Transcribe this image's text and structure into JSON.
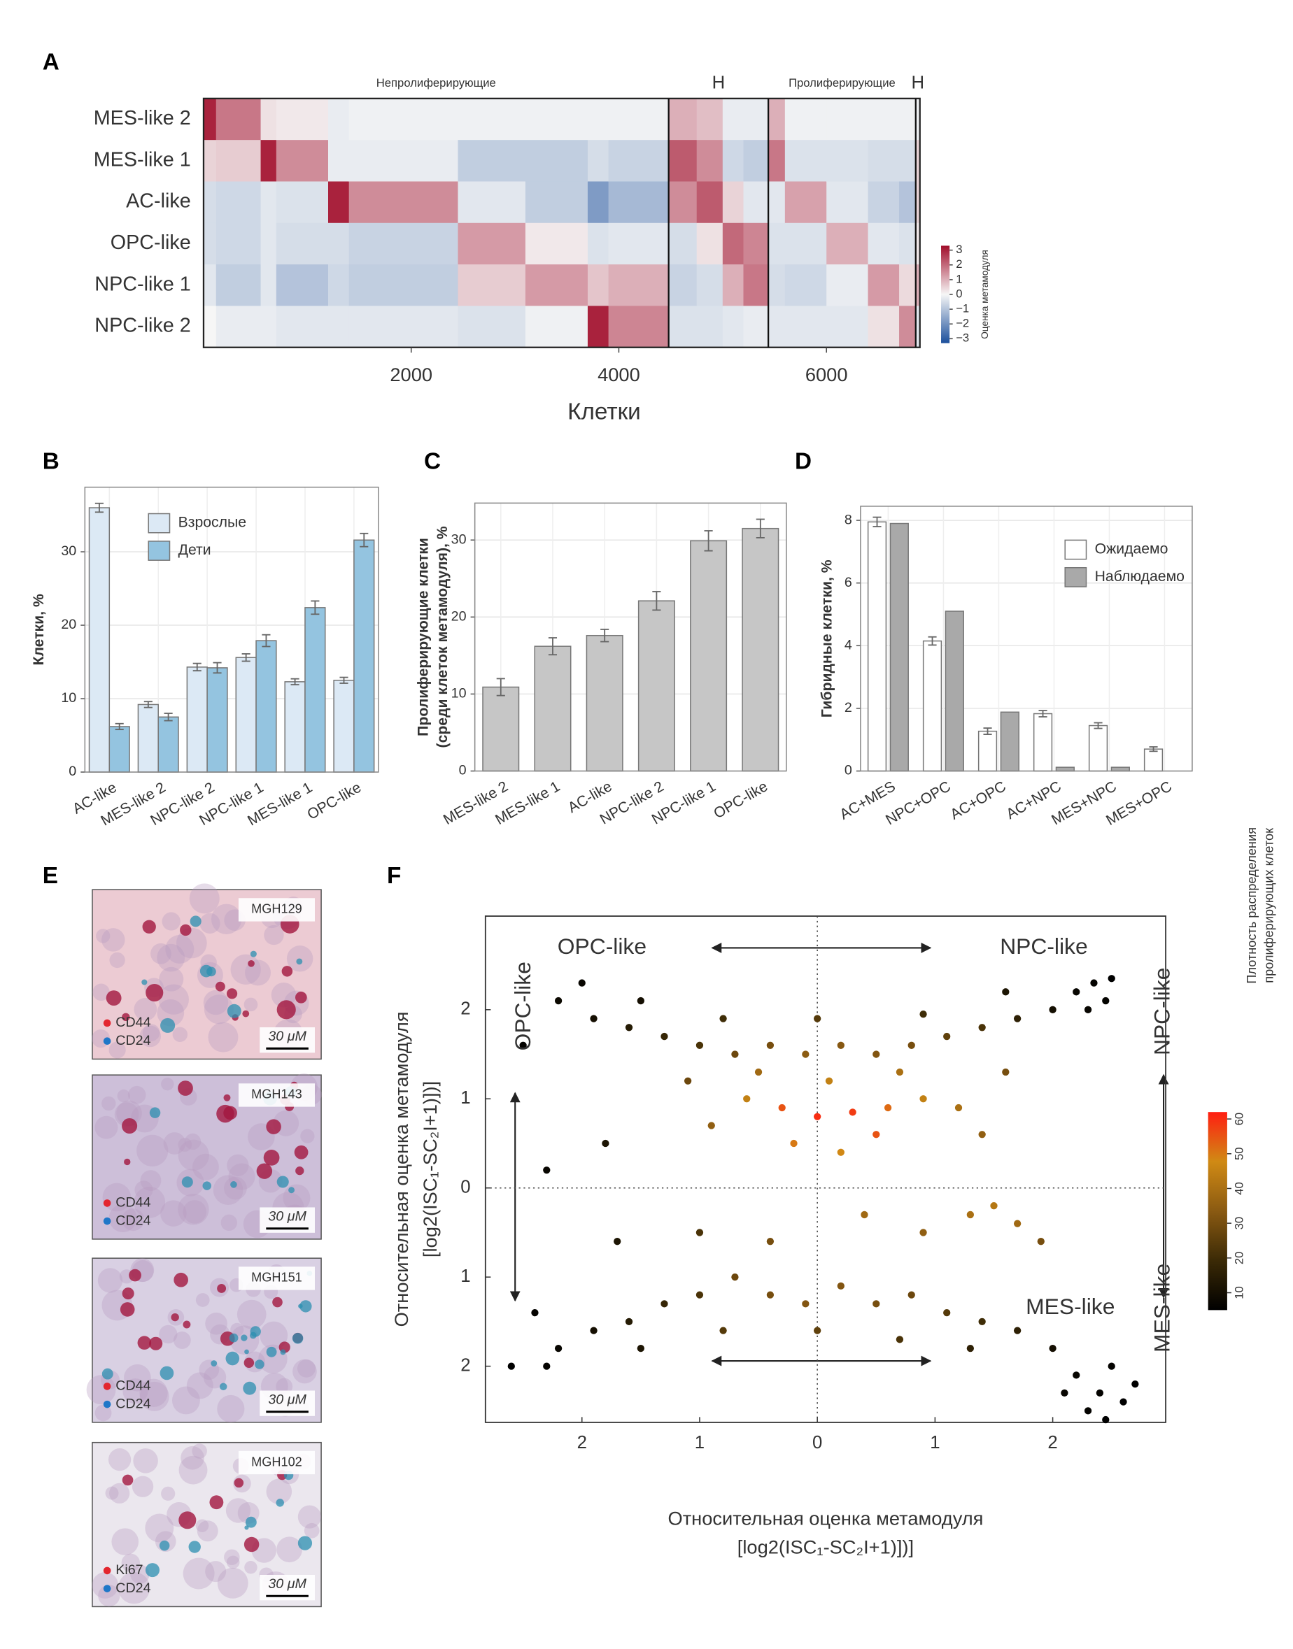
{
  "figure": {
    "panel_letters": [
      "A",
      "B",
      "C",
      "D",
      "E",
      "F"
    ],
    "micrographs": [
      {
        "id": "MGH129",
        "markers": [
          {
            "name": "CD44",
            "color": "#e3262f"
          },
          {
            "name": "CD24",
            "color": "#1f77c8"
          }
        ],
        "scale": "30 μM"
      },
      {
        "id": "MGH143",
        "markers": [
          {
            "name": "CD44",
            "color": "#e3262f"
          },
          {
            "name": "CD24",
            "color": "#1f77c8"
          }
        ],
        "scale": "30 μM"
      },
      {
        "id": "MGH151",
        "markers": [
          {
            "name": "CD44",
            "color": "#e3262f"
          },
          {
            "name": "CD24",
            "color": "#1f77c8"
          }
        ],
        "scale": "30 μM"
      },
      {
        "id": "MGH102",
        "markers": [
          {
            "name": "Ki67",
            "color": "#e3262f"
          },
          {
            "name": "CD24",
            "color": "#1f77c8"
          }
        ],
        "scale": "30 μM"
      }
    ]
  },
  "chart_data": [
    {
      "type": "heatmap",
      "xlabel": "Клетки",
      "rows": [
        "MES-like 2",
        "MES-like 1",
        "AC-like",
        "OPC-like",
        "NPC-like 1",
        "NPC-like 2"
      ],
      "groups": [
        {
          "name": "Непролиферирующие",
          "end": 4480
        },
        {
          "name": "H",
          "end": 5440
        },
        {
          "name": "Пролиферирующие",
          "end": 6860
        },
        {
          "name": "H",
          "end": 6900
        }
      ],
      "segments": [
        {
          "start": 0,
          "end": 120,
          "values": [
            3,
            0.5,
            -0.5,
            -0.5,
            -0.3,
            0
          ]
        },
        {
          "start": 120,
          "end": 550,
          "values": [
            1.8,
            0.6,
            -0.6,
            -0.6,
            -0.8,
            -0.2
          ]
        },
        {
          "start": 550,
          "end": 700,
          "values": [
            0.3,
            3,
            -0.3,
            -0.3,
            -0.3,
            -0.2
          ]
        },
        {
          "start": 700,
          "end": 1200,
          "values": [
            0.2,
            1.5,
            -0.4,
            -0.5,
            -1,
            -0.3
          ]
        },
        {
          "start": 1200,
          "end": 1400,
          "values": [
            -0.2,
            -0.2,
            3,
            -0.5,
            -0.6,
            -0.3
          ]
        },
        {
          "start": 1400,
          "end": 2450,
          "values": [
            -0.1,
            -0.2,
            1.5,
            -0.7,
            -0.8,
            -0.3
          ]
        },
        {
          "start": 2450,
          "end": 3100,
          "values": [
            -0.1,
            -0.8,
            -0.3,
            1.3,
            0.6,
            -0.4
          ]
        },
        {
          "start": 3100,
          "end": 3700,
          "values": [
            -0.1,
            -0.8,
            -0.8,
            0.2,
            1.3,
            -0.1
          ]
        },
        {
          "start": 3700,
          "end": 3900,
          "values": [
            -0.1,
            -0.5,
            -1.8,
            -0.4,
            0.7,
            3
          ]
        },
        {
          "start": 3900,
          "end": 4480,
          "values": [
            -0.1,
            -0.7,
            -1.2,
            -0.3,
            1,
            1.6
          ]
        },
        {
          "start": 4480,
          "end": 4750,
          "values": [
            1,
            2.2,
            1.5,
            -0.5,
            -0.7,
            -0.4
          ]
        },
        {
          "start": 4750,
          "end": 5000,
          "values": [
            0.8,
            1.5,
            2.2,
            0.3,
            -0.5,
            -0.4
          ]
        },
        {
          "start": 5000,
          "end": 5200,
          "values": [
            -0.2,
            -0.6,
            0.5,
            2,
            1,
            -0.3
          ]
        },
        {
          "start": 5200,
          "end": 5440,
          "values": [
            -0.2,
            -0.8,
            -0.3,
            1.6,
            1.8,
            -0.2
          ]
        },
        {
          "start": 5440,
          "end": 5600,
          "values": [
            1,
            1.8,
            -0.3,
            -0.4,
            -0.5,
            -0.3
          ]
        },
        {
          "start": 5600,
          "end": 6000,
          "values": [
            -0.1,
            -0.4,
            1.2,
            -0.4,
            -0.6,
            -0.3
          ]
        },
        {
          "start": 6000,
          "end": 6400,
          "values": [
            -0.1,
            -0.4,
            -0.3,
            1,
            -0.2,
            -0.3
          ]
        },
        {
          "start": 6400,
          "end": 6700,
          "values": [
            -0.1,
            -0.5,
            -0.7,
            -0.3,
            1.3,
            0.3
          ]
        },
        {
          "start": 6700,
          "end": 6860,
          "values": [
            -0.1,
            -0.5,
            -1,
            -0.4,
            0.4,
            1.5
          ]
        },
        {
          "start": 6860,
          "end": 6900,
          "values": [
            -0.1,
            0.5,
            0.5,
            0.2,
            1,
            -0.3
          ]
        }
      ],
      "xlim": [
        0,
        6900
      ],
      "xticks": [
        2000,
        4000,
        6000
      ],
      "clim": [
        -3.3,
        3.3
      ],
      "cticks": [
        {
          "value": -3,
          "label": "−3"
        },
        {
          "value": -2,
          "label": "−2"
        },
        {
          "value": -1,
          "label": "−1"
        },
        0,
        1,
        2,
        3
      ],
      "colors": [
        "#1b4f9c",
        "#f6f6f6",
        "#a10d2a"
      ],
      "colorbar_label": "Оценка метамодуля"
    },
    {
      "type": "bar",
      "ylabel": [
        "Клетки, %"
      ],
      "categories": [
        "AC-like",
        "MES-like 2",
        "NPC-like 2",
        "NPC-like 1",
        "MES-like 1",
        "OPC-like"
      ],
      "series": [
        {
          "name": "Взрослые",
          "color": "#dce9f5",
          "values": [
            36,
            9.2,
            14.3,
            15.6,
            12.3,
            12.5
          ],
          "errors": [
            0.6,
            0.4,
            0.5,
            0.5,
            0.4,
            0.4
          ]
        },
        {
          "name": "Дети",
          "color": "#94c4e0",
          "values": [
            6.2,
            7.5,
            14.2,
            17.9,
            22.4,
            31.6
          ],
          "errors": [
            0.4,
            0.5,
            0.7,
            0.8,
            0.9,
            0.9
          ]
        }
      ],
      "ylim": [
        0,
        38.8
      ],
      "yticks": [
        0,
        10,
        20,
        30
      ],
      "grid": true,
      "legend": "upper left"
    },
    {
      "type": "bar",
      "ylabel": [
        "Пролиферирующие клетки",
        "(среди клеток метамодуля), %"
      ],
      "categories": [
        "MES-like 2",
        "MES-like 1",
        "AC-like",
        "NPC-like 2",
        "NPC-like 1",
        "OPC-like"
      ],
      "series": [
        {
          "color": "#c6c6c6",
          "values": [
            10.9,
            16.2,
            17.6,
            22.1,
            29.9,
            31.5
          ],
          "errors": [
            1.1,
            1.1,
            0.8,
            1.2,
            1.3,
            1.2
          ]
        }
      ],
      "ylim": [
        0,
        34.8
      ],
      "yticks": [
        0,
        10,
        20,
        30
      ],
      "grid": true
    },
    {
      "type": "bar",
      "ylabel": [
        "Гибридные клетки, %"
      ],
      "categories": [
        "AC+MES",
        "NPC+OPC",
        "AC+OPC",
        "AC+NPC",
        "MES+NPC",
        "MES+OPC"
      ],
      "series": [
        {
          "name": "Ожидаемо",
          "color": "#ffffff",
          "values": [
            7.95,
            4.15,
            1.27,
            1.83,
            1.45,
            0.7
          ],
          "errors": [
            0.15,
            0.13,
            0.1,
            0.1,
            0.09,
            0.07
          ]
        },
        {
          "name": "Наблюдаемо",
          "color": "#a9a9a9",
          "values": [
            7.9,
            5.1,
            1.88,
            0.12,
            0.12,
            0
          ]
        }
      ],
      "ylim": [
        0,
        8.45
      ],
      "yticks": [
        0,
        2,
        4,
        6,
        8
      ],
      "grid": true,
      "legend": "upper right"
    },
    {
      "type": "scatter",
      "xlabel": [
        "Относительная оценка метамодуля",
        "[log2(ISC₁-SC₂I+1)])]"
      ],
      "ylabel": [
        "Относительная оценка метамодуля",
        "[log2(ISC₁-SC₂I+1)])]"
      ],
      "annotations": [
        "OPC-like",
        "NPC-like",
        "MES-like",
        "OPC-like",
        "NPC-like",
        "MES-like"
      ],
      "xlim": [
        -2.82,
        2.96
      ],
      "ylim": [
        -2.63,
        3.05
      ],
      "xticks": [
        {
          "value": -2,
          "label": "2"
        },
        {
          "value": -1,
          "label": "1"
        },
        0,
        1,
        2
      ],
      "yticks": [
        {
          "value": -2,
          "label": "2"
        },
        {
          "value": -1,
          "label": "1"
        },
        0,
        1,
        2
      ],
      "x": [
        -2.2,
        -1.9,
        -1.6,
        -1.3,
        -1.0,
        -0.7,
        -0.4,
        -0.1,
        0.2,
        0.5,
        0.8,
        1.1,
        1.4,
        1.7,
        2.0,
        2.2,
        2.35,
        2.45,
        2.3,
        2.5,
        -2.0,
        -1.5,
        -0.8,
        0.0,
        0.9,
        1.6,
        -0.6,
        -0.3,
        0.0,
        0.3,
        0.6,
        0.9,
        -0.2,
        0.2,
        0.5,
        1.2,
        -0.9,
        1.4,
        0.1,
        -0.5,
        0.7,
        -1.1,
        1.6,
        1.5,
        1.7,
        1.3,
        0.9,
        0.4,
        -0.4,
        -1.0,
        1.9,
        -2.2,
        -1.9,
        -1.6,
        -1.3,
        -1.0,
        -0.7,
        -0.4,
        -0.1,
        0.2,
        0.5,
        0.8,
        1.1,
        1.4,
        1.7,
        2.0,
        -2.3,
        -1.5,
        -0.8,
        0.0,
        0.7,
        1.3,
        2.2,
        2.4,
        2.6,
        2.5,
        2.3,
        2.7,
        2.1,
        2.45,
        -2.5,
        -2.4,
        -2.6,
        -1.8,
        -1.7,
        -2.3
      ],
      "y": [
        2.1,
        1.9,
        1.8,
        1.7,
        1.6,
        1.5,
        1.6,
        1.5,
        1.6,
        1.5,
        1.6,
        1.7,
        1.8,
        1.9,
        2.0,
        2.2,
        2.3,
        2.1,
        2.0,
        2.35,
        2.3,
        2.1,
        1.9,
        1.9,
        1.95,
        2.2,
        1.0,
        0.9,
        0.8,
        0.85,
        0.9,
        1.0,
        0.5,
        0.4,
        0.6,
        0.9,
        0.7,
        0.6,
        1.2,
        1.3,
        1.3,
        1.2,
        1.3,
        -0.2,
        -0.4,
        -0.3,
        -0.5,
        -0.3,
        -0.6,
        -0.5,
        -0.6,
        -1.8,
        -1.6,
        -1.5,
        -1.3,
        -1.2,
        -1.0,
        -1.2,
        -1.3,
        -1.1,
        -1.3,
        -1.2,
        -1.4,
        -1.5,
        -1.6,
        -1.8,
        -2.0,
        -1.8,
        -1.6,
        -1.6,
        -1.7,
        -1.8,
        -2.1,
        -2.3,
        -2.4,
        -2.0,
        -2.5,
        -2.2,
        -2.3,
        -2.6,
        1.6,
        -1.4,
        -2.0,
        0.5,
        -0.6,
        0.2
      ],
      "density": [
        8,
        10,
        14,
        18,
        22,
        28,
        30,
        34,
        33,
        32,
        30,
        26,
        22,
        16,
        10,
        7,
        6,
        6,
        7,
        5,
        7,
        10,
        20,
        24,
        20,
        12,
        45,
        55,
        60,
        58,
        52,
        45,
        50,
        48,
        55,
        40,
        35,
        35,
        45,
        38,
        40,
        28,
        30,
        42,
        38,
        40,
        35,
        38,
        30,
        22,
        30,
        7,
        10,
        14,
        18,
        22,
        28,
        30,
        32,
        32,
        30,
        28,
        24,
        20,
        16,
        10,
        6,
        12,
        24,
        26,
        22,
        16,
        7,
        6,
        5,
        6,
        6,
        5,
        7,
        5,
        6,
        6,
        5,
        12,
        12,
        7
      ],
      "clim": [
        5,
        62
      ],
      "cticks": [
        10,
        20,
        30,
        40,
        50,
        60
      ],
      "colorscale": [
        "#000000",
        "#3b2a06",
        "#8a5a12",
        "#d08a14",
        "#ff1e12"
      ],
      "colorbar_label": [
        "Плотность распределения",
        "пролиферирующих клеток"
      ]
    }
  ]
}
